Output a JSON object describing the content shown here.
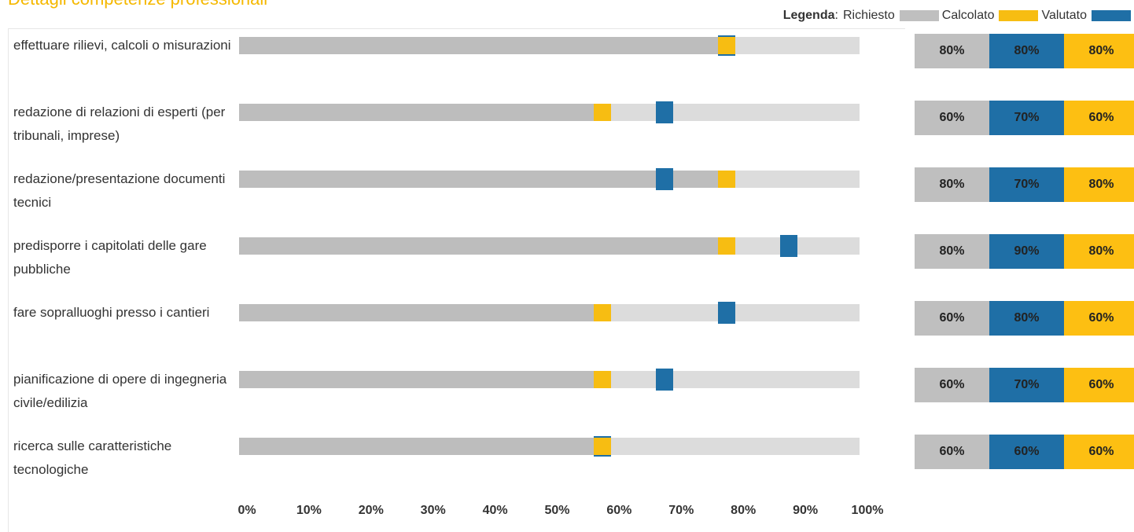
{
  "title": "Dettagli competenze professionali",
  "legend": {
    "title": "Legenda",
    "items": [
      {
        "label": "Richiesto",
        "color": "#bfbfbf"
      },
      {
        "label": "Calcolato",
        "color": "#f7bd12"
      },
      {
        "label": "Valutato",
        "color": "#1f6fa6"
      }
    ]
  },
  "colors": {
    "richiesto": "#bdbdbd",
    "track": "#dcdcdc",
    "calcolato_marker": "#1f6fa6",
    "valutato_marker": "#f7bd12"
  },
  "chart_data": {
    "type": "bar",
    "orientation": "horizontal",
    "x_ticks": [
      "0%",
      "10%",
      "20%",
      "30%",
      "40%",
      "50%",
      "60%",
      "70%",
      "80%",
      "90%",
      "100%"
    ],
    "xlim": [
      0,
      100
    ],
    "categories": [
      "effettuare rilievi, calcoli o misurazioni",
      "redazione di relazioni di esperti (per tribunali, imprese)",
      "redazione/presentazione documenti tecnici",
      "predisporre i capitolati delle gare pubbliche",
      "fare sopralluoghi presso i cantieri",
      "pianificazione di opere di ingegneria civile/edilizia",
      "ricerca sulle caratteristiche tecnologiche"
    ],
    "series": [
      {
        "name": "Richiesto",
        "values": [
          80,
          60,
          80,
          80,
          60,
          60,
          60
        ]
      },
      {
        "name": "Calcolato",
        "values": [
          80,
          70,
          70,
          90,
          80,
          70,
          60
        ]
      },
      {
        "name": "Valutato",
        "values": [
          80,
          60,
          80,
          80,
          60,
          60,
          60
        ]
      }
    ],
    "value_labels": [
      [
        "80%",
        "80%",
        "80%"
      ],
      [
        "60%",
        "70%",
        "60%"
      ],
      [
        "80%",
        "70%",
        "80%"
      ],
      [
        "80%",
        "90%",
        "80%"
      ],
      [
        "60%",
        "80%",
        "60%"
      ],
      [
        "60%",
        "70%",
        "60%"
      ],
      [
        "60%",
        "60%",
        "60%"
      ]
    ]
  }
}
